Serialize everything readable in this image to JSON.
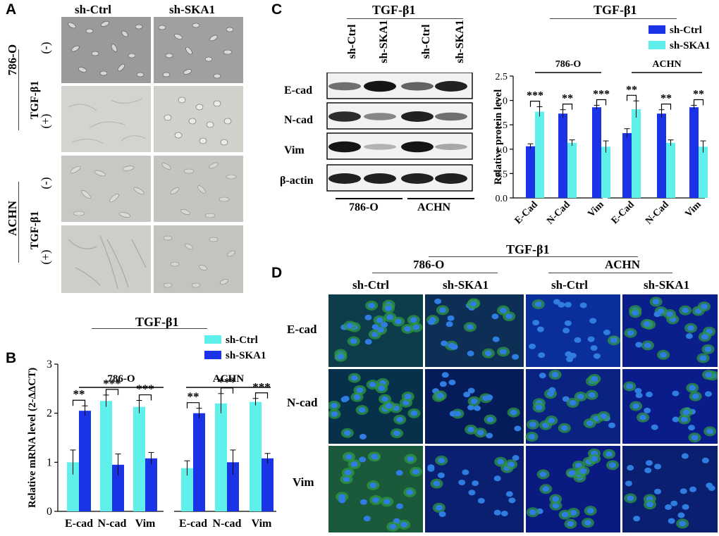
{
  "panels": {
    "A": {
      "letter": "A",
      "col_labels": [
        "sh-Ctrl",
        "sh-SKA1"
      ],
      "cell_lines": [
        "786-O",
        "ACHN"
      ],
      "treatment": "TGF-β1",
      "minus": "(-)",
      "plus": "(+)"
    },
    "B": {
      "letter": "B",
      "treatment": "TGF-β1"
    },
    "C": {
      "letter": "C",
      "treatment": "TGF-β1",
      "lane_labels": [
        "sh-Ctrl",
        "sh-SKA1",
        "sh-Ctrl",
        "sh-SKA1"
      ],
      "proteins": [
        "E-cad",
        "N-cad",
        "Vim",
        "β-actin"
      ],
      "cell_lines": [
        "786-O",
        "ACHN"
      ],
      "band_intensity": [
        [
          0.55,
          0.95,
          0.6,
          0.9
        ],
        [
          0.85,
          0.45,
          0.9,
          0.55
        ],
        [
          0.95,
          0.25,
          0.95,
          0.3
        ],
        [
          0.9,
          0.9,
          0.9,
          0.9
        ]
      ]
    },
    "D": {
      "letter": "D",
      "treatment": "TGF-β1",
      "cell_lines": [
        "786-O",
        "ACHN"
      ],
      "col_labels": [
        "sh-Ctrl",
        "sh-SKA1",
        "sh-Ctrl",
        "sh-SKA1"
      ],
      "row_labels": [
        "E-cad",
        "N-cad",
        "Vim"
      ]
    }
  },
  "chart_data": [
    {
      "id": "B",
      "type": "bar",
      "title": "TGF-β1",
      "ylabel": "Relative mRNA level (2-ΔΔCT)",
      "ylim": [
        0,
        3
      ],
      "yticks": [
        0,
        1,
        2,
        3
      ],
      "groups": [
        "786-O",
        "ACHN"
      ],
      "categories": [
        "E-cad",
        "N-cad",
        "Vim",
        "E-cad",
        "N-cad",
        "Vim"
      ],
      "series": [
        {
          "name": "sh-Ctrl",
          "color": "#5ff0ec",
          "values": [
            1.0,
            2.25,
            2.13,
            0.88,
            2.2,
            2.23
          ],
          "errors": [
            0.25,
            0.12,
            0.13,
            0.15,
            0.2,
            0.07
          ]
        },
        {
          "name": "sh-SKA1",
          "color": "#1a33e6",
          "values": [
            2.05,
            0.95,
            1.08,
            2.0,
            1.0,
            1.08
          ],
          "errors": [
            0.1,
            0.22,
            0.12,
            0.1,
            0.25,
            0.1
          ]
        }
      ],
      "significance": [
        "**",
        "***",
        "***",
        "**",
        "***",
        "***"
      ],
      "legend_position": "top-right"
    },
    {
      "id": "C",
      "type": "bar",
      "title": "TGF-β1",
      "ylabel": "Relative protein level",
      "ylim": [
        0,
        2.5
      ],
      "yticks": [
        0.0,
        0.5,
        1.0,
        1.5,
        2.0,
        2.5
      ],
      "groups": [
        "786-O",
        "ACHN"
      ],
      "categories": [
        "E-Cad",
        "N-Cad",
        "Vim",
        "E-Cad",
        "N-Cad",
        "Vim"
      ],
      "series": [
        {
          "name": "sh-Ctrl",
          "color": "#1a33e6",
          "values": [
            1.06,
            1.73,
            1.86,
            1.33,
            1.73,
            1.86
          ],
          "errors": [
            0.05,
            0.08,
            0.04,
            0.09,
            0.08,
            0.04
          ]
        },
        {
          "name": "sh-SKA1",
          "color": "#5ff0ec",
          "values": [
            1.77,
            1.13,
            1.05,
            1.82,
            1.13,
            1.05
          ],
          "errors": [
            0.1,
            0.06,
            0.12,
            0.17,
            0.06,
            0.12
          ]
        }
      ],
      "significance": [
        "***",
        "**",
        "***",
        "**",
        "**",
        "**"
      ],
      "legend_position": "top-right"
    }
  ]
}
